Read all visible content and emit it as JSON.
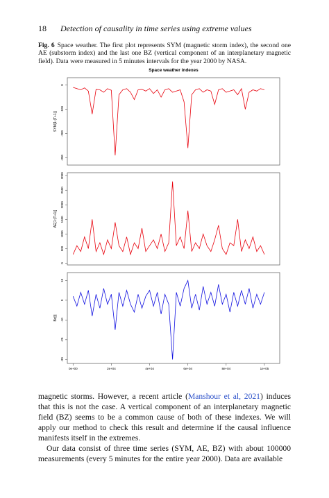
{
  "header": {
    "page": "18",
    "title": "Detection of causality in time series using extreme values"
  },
  "figure": {
    "label": "Fig. 6",
    "caption": "Space weather. The first plot represents SYM (magnetic storm index), the second one AE (substorm index) and the last one BZ (vertical component of an interplanetary magnetic field). Data were measured in 5 minutes intervals for the year 2000 by NASA.",
    "title": "Space weather indexes"
  },
  "chart_data": [
    {
      "type": "line",
      "ylabel": "SYM[1:(T+1)]",
      "xlim": [
        -3000,
        108000
      ],
      "ylim": [
        -330,
        30
      ],
      "yticks": [
        0,
        -100,
        -200,
        -300
      ],
      "x": [
        0,
        2000,
        4000,
        6000,
        8000,
        10000,
        12000,
        14000,
        16000,
        18000,
        20000,
        22000,
        24000,
        26000,
        28000,
        30000,
        32000,
        34000,
        36000,
        38000,
        40000,
        42000,
        44000,
        46000,
        48000,
        50000,
        52000,
        54000,
        56000,
        58000,
        60000,
        62000,
        64000,
        66000,
        68000,
        70000,
        72000,
        74000,
        76000,
        78000,
        80000,
        82000,
        84000,
        86000,
        88000,
        90000,
        92000,
        94000,
        96000,
        98000,
        100000
      ],
      "series": [
        {
          "color": "#e8000b",
          "values": [
            -10,
            -15,
            -20,
            -12,
            -25,
            -120,
            -18,
            -20,
            -30,
            -15,
            -22,
            -290,
            -40,
            -20,
            -15,
            -30,
            -60,
            -20,
            -18,
            -25,
            -15,
            -35,
            -20,
            -50,
            -20,
            -15,
            -30,
            -25,
            -20,
            -70,
            -260,
            -40,
            -20,
            -15,
            -30,
            -20,
            -25,
            -80,
            -20,
            -15,
            -30,
            -25,
            -20,
            -40,
            -15,
            -100,
            -30,
            -20,
            -25,
            -15,
            -20
          ]
        }
      ]
    },
    {
      "type": "line",
      "ylabel": "AE[1:(T+1)]",
      "xlim": [
        -3000,
        108000
      ],
      "ylim": [
        -60,
        3100
      ],
      "yticks": [
        0,
        500,
        1000,
        1500,
        2000,
        2500,
        3000
      ],
      "x": [
        0,
        2000,
        4000,
        6000,
        8000,
        10000,
        12000,
        14000,
        16000,
        18000,
        20000,
        22000,
        24000,
        26000,
        28000,
        30000,
        32000,
        34000,
        36000,
        38000,
        40000,
        42000,
        44000,
        46000,
        48000,
        50000,
        52000,
        54000,
        56000,
        58000,
        60000,
        62000,
        64000,
        66000,
        68000,
        70000,
        72000,
        74000,
        76000,
        78000,
        80000,
        82000,
        84000,
        86000,
        88000,
        90000,
        92000,
        94000,
        96000,
        98000,
        100000
      ],
      "series": [
        {
          "color": "#e8000b",
          "values": [
            300,
            600,
            400,
            900,
            500,
            1500,
            400,
            700,
            300,
            800,
            500,
            1400,
            600,
            400,
            900,
            300,
            700,
            500,
            1200,
            400,
            600,
            800,
            500,
            1000,
            400,
            700,
            2800,
            600,
            900,
            500,
            1800,
            400,
            700,
            500,
            1000,
            600,
            400,
            800,
            1300,
            500,
            300,
            700,
            600,
            1500,
            400,
            800,
            500,
            900,
            400,
            600,
            300
          ]
        }
      ]
    },
    {
      "type": "line",
      "ylabel": "Bz[t]",
      "xlim": [
        -3000,
        108000
      ],
      "ylim": [
        -32,
        14
      ],
      "yticks": [
        10,
        0,
        -10,
        -20,
        -30
      ],
      "xticks": [
        {
          "value": 0,
          "label": "0e+00"
        },
        {
          "value": 20000,
          "label": "2e+04"
        },
        {
          "value": 40000,
          "label": "4e+04"
        },
        {
          "value": 60000,
          "label": "6e+04"
        },
        {
          "value": 80000,
          "label": "8e+04"
        },
        {
          "value": 100000,
          "label": "1e+05"
        }
      ],
      "x": [
        0,
        2000,
        4000,
        6000,
        8000,
        10000,
        12000,
        14000,
        16000,
        18000,
        20000,
        22000,
        24000,
        26000,
        28000,
        30000,
        32000,
        34000,
        36000,
        38000,
        40000,
        42000,
        44000,
        46000,
        48000,
        50000,
        52000,
        54000,
        56000,
        58000,
        60000,
        62000,
        64000,
        66000,
        68000,
        70000,
        72000,
        74000,
        76000,
        78000,
        80000,
        82000,
        84000,
        86000,
        88000,
        90000,
        92000,
        94000,
        96000,
        98000,
        100000
      ],
      "series": [
        {
          "color": "#1010e0",
          "values": [
            2,
            -3,
            4,
            -2,
            5,
            -8,
            3,
            -4,
            6,
            -2,
            3,
            -15,
            4,
            -3,
            5,
            -2,
            -6,
            3,
            -4,
            2,
            5,
            -3,
            4,
            -7,
            3,
            -2,
            -30,
            4,
            -3,
            6,
            10,
            -4,
            3,
            -5,
            7,
            -2,
            4,
            -3,
            8,
            -2,
            3,
            -6,
            4,
            -3,
            5,
            -2,
            6,
            -4,
            3,
            -2,
            4
          ]
        }
      ]
    }
  ],
  "body": {
    "p1": {
      "before": "magnetic storms. However, a recent article (",
      "citation": "Manshour et al, 2021",
      "after": ") induces that this is not the case. A vertical component of an interplanetary magnetic field (BZ) seems to be a common cause of both of these indexes. We will apply our method to check this result and determine if the causal influence manifests itself in the extremes."
    },
    "p2": "Our data consist of three time series (SYM, AE, BZ) with about 100000 measurements (every 5 minutes for the entire year 2000). Data are available"
  }
}
